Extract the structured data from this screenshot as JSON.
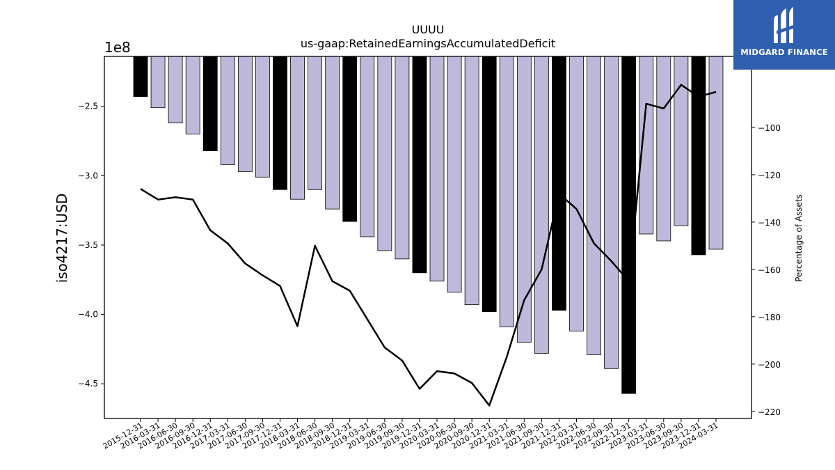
{
  "chart_data": {
    "type": "bar",
    "title": "UUUU",
    "subtitle": "us-gaap:RetainedEarningsAccumulatedDeficit",
    "ylabel": "iso4217:USD",
    "y2label": "Percentage of Assets",
    "y_exponent_label": "1e8",
    "ylim": [
      -4.75,
      -2.14
    ],
    "y_ticks": [
      -2.5,
      -3.0,
      -3.5,
      -4.0,
      -4.5
    ],
    "y_tick_labels": [
      "−2.5",
      "−3.0",
      "−3.5",
      "−4.0",
      "−4.5"
    ],
    "y2lim": [
      -223,
      -70
    ],
    "y2_ticks": [
      -100,
      -120,
      -140,
      -160,
      -180,
      -200,
      -220
    ],
    "y2_tick_labels": [
      "−100",
      "−120",
      "−140",
      "−160",
      "−180",
      "−200",
      "−220"
    ],
    "grid": false,
    "categories": [
      "2015-12-31",
      "2016-03-31",
      "2016-06-30",
      "2016-09-30",
      "2016-12-31",
      "2017-03-31",
      "2017-06-30",
      "2017-09-30",
      "2017-12-31",
      "2018-03-31",
      "2018-06-30",
      "2018-09-30",
      "2018-12-31",
      "2019-03-31",
      "2019-06-30",
      "2019-09-30",
      "2019-12-31",
      "2020-03-31",
      "2020-06-30",
      "2020-09-30",
      "2020-12-31",
      "2021-03-31",
      "2021-06-30",
      "2021-09-30",
      "2021-12-31",
      "2022-03-31",
      "2022-06-30",
      "2022-09-30",
      "2022-12-31",
      "2023-03-31",
      "2023-06-30",
      "2023-09-30",
      "2023-12-31",
      "2024-03-31"
    ],
    "series": [
      {
        "type": "bar",
        "values": [
          -2.43,
          -2.51,
          -2.62,
          -2.7,
          -2.82,
          -2.92,
          -2.97,
          -3.01,
          -3.1,
          -3.17,
          -3.1,
          -3.24,
          -3.33,
          -3.44,
          -3.54,
          -3.6,
          -3.7,
          -3.76,
          -3.84,
          -3.93,
          -3.98,
          -4.09,
          -4.2,
          -4.28,
          -3.97,
          -4.12,
          -4.29,
          -4.39,
          -4.57,
          -3.42,
          -3.47,
          -3.36,
          -3.57,
          -3.53
        ],
        "colors": [
          "#000000",
          "#bdb9da",
          "#bdb9da",
          "#bdb9da",
          "#000000",
          "#bdb9da",
          "#bdb9da",
          "#bdb9da",
          "#000000",
          "#bdb9da",
          "#bdb9da",
          "#bdb9da",
          "#000000",
          "#bdb9da",
          "#bdb9da",
          "#bdb9da",
          "#000000",
          "#bdb9da",
          "#bdb9da",
          "#bdb9da",
          "#000000",
          "#bdb9da",
          "#bdb9da",
          "#bdb9da",
          "#000000",
          "#bdb9da",
          "#bdb9da",
          "#bdb9da",
          "#000000",
          "#bdb9da",
          "#bdb9da",
          "#bdb9da",
          "#000000",
          "#bdb9da"
        ]
      },
      {
        "type": "line",
        "axis": "right",
        "color": "#000000",
        "values": [
          -126,
          -130.5,
          -129.5,
          -130.5,
          -143.5,
          -149,
          -157.5,
          -162.5,
          -167,
          -184,
          -150,
          -165,
          -169,
          -181,
          -193,
          -198.5,
          -210.5,
          -203,
          -204,
          -208,
          -217.5,
          -197,
          -173,
          -160,
          -128,
          -134.5,
          -149,
          -156.5,
          -165,
          -90,
          -92,
          -82,
          -87,
          -85
        ]
      }
    ]
  },
  "logo": {
    "text": "MIDGARD FINANCE"
  }
}
